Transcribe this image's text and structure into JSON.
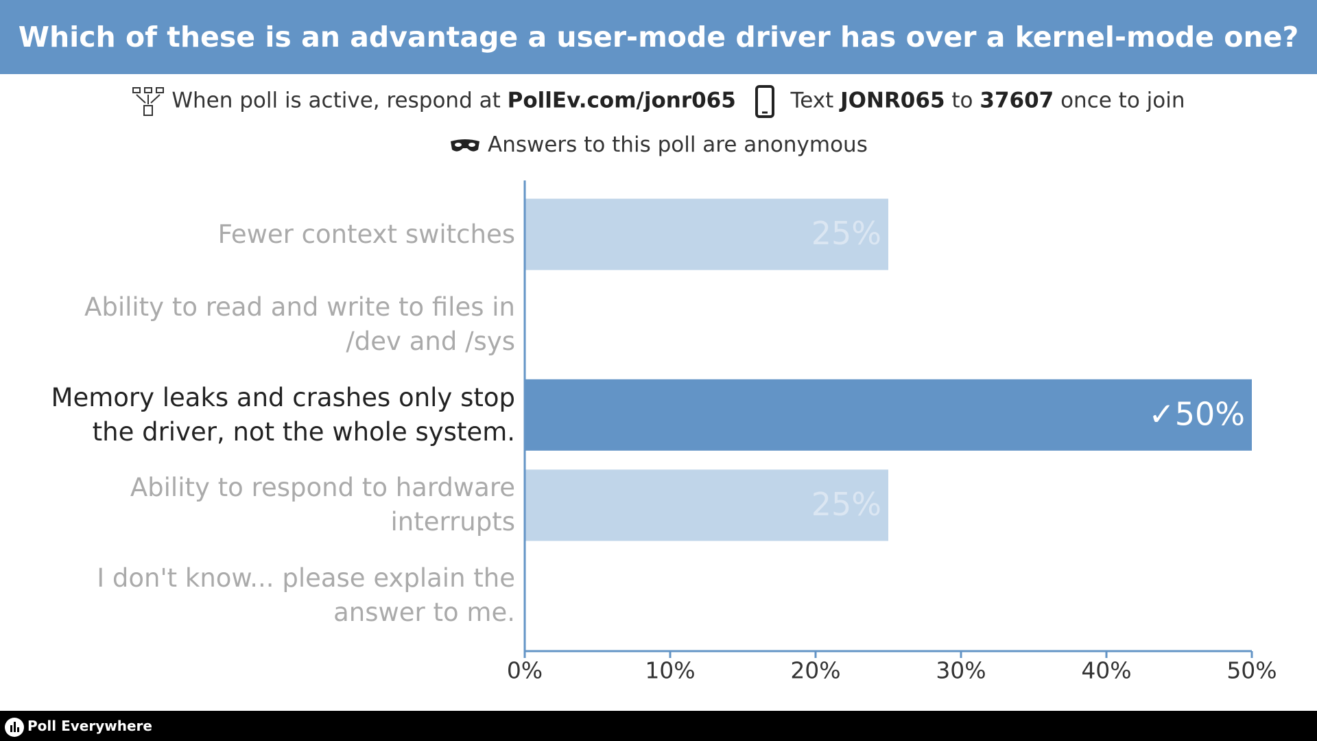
{
  "header": {
    "title": "Which of these is an advantage a user-mode driver has over a kernel-mode one?",
    "instructions": [
      "When poll is active, respond at",
      "PollEv.com/jonr065",
      "Text",
      "JONR065",
      "to",
      "37607",
      "once to join"
    ],
    "anonymous": "Answers to this poll are anonymous"
  },
  "chart_data": {
    "type": "hbar",
    "categories": [
      "Fewer context switches",
      "Ability to read and write to files in /dev and /sys",
      "Memory leaks and crashes only stop the driver, not the whole system.",
      "Ability to respond to hardware interrupts",
      "I don't know... please explain the answer to me."
    ],
    "values": [
      25,
      0,
      50,
      25,
      0
    ],
    "value_labels": [
      "25%",
      null,
      "✓50%",
      "25%",
      null
    ],
    "color": "#c0d5e9",
    "highlight_color": "#6394c6",
    "correct_index": 2,
    "xlim": [
      0,
      50
    ],
    "xticks": [
      {
        "value": 0,
        "label": "0%"
      },
      {
        "value": 10,
        "label": "10%"
      },
      {
        "value": 20,
        "label": "20%"
      },
      {
        "value": 30,
        "label": "30%"
      },
      {
        "value": 40,
        "label": "40%"
      },
      {
        "value": 50,
        "label": "50%"
      }
    ]
  },
  "footer": {
    "brand": "Poll Everywhere"
  }
}
